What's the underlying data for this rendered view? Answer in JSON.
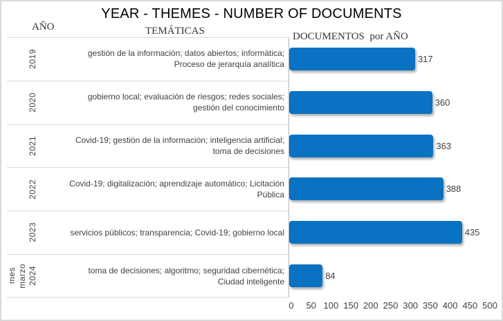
{
  "title": "YEAR - THEMES - NUMBER OF DOCUMENTS",
  "headers": {
    "year": "AÑO",
    "themes": "TEMÁTICAS",
    "documents": "DOCUMENTOS  por AÑO"
  },
  "rows": [
    {
      "year_lines": [
        "2019"
      ],
      "themes": "gestión de la información; datos abiertos; informática;\nProceso de jerarquía analítica",
      "value": 317
    },
    {
      "year_lines": [
        "2020"
      ],
      "themes": "gobierno local; evaluación de riesgos; redes sociales;\ngestión del conocimiento",
      "value": 360
    },
    {
      "year_lines": [
        "2021"
      ],
      "themes": "Covid-19; gestión de la información; inteligencia artificial;\ntoma de decisiones",
      "value": 363
    },
    {
      "year_lines": [
        "2022"
      ],
      "themes": "Covid-19; digitalización; aprendizaje automático; Licitación\nPública",
      "value": 388
    },
    {
      "year_lines": [
        "2023"
      ],
      "themes": "servicios públicos; transparencia; Covid-19; gobierno local",
      "value": 435
    },
    {
      "year_lines": [
        "mes",
        "marzo",
        "2024"
      ],
      "themes": "toma de decisiones; algoritmo; seguridad cibernética;\nCiudad inteligente",
      "value": 84
    }
  ],
  "chart_data": {
    "type": "bar",
    "orientation": "horizontal",
    "title": "YEAR - THEMES - NUMBER OF DOCUMENTS",
    "categories": [
      "2019",
      "2020",
      "2021",
      "2022",
      "2023",
      "mes marzo 2024"
    ],
    "values": [
      317,
      360,
      363,
      388,
      435,
      84
    ],
    "category_themes": [
      "gestión de la información; datos abiertos; informática; Proceso de jerarquía analítica",
      "gobierno local; evaluación de riesgos; redes sociales; gestión del conocimiento",
      "Covid-19; gestión de la información; inteligencia artificial; toma de decisiones",
      "Covid-19; digitalización; aprendizaje automático; Licitación Pública",
      "servicios públicos; transparencia; Covid-19; gobierno local",
      "toma de decisiones; algoritmo; seguridad cibernética; Ciudad inteligente"
    ],
    "xlabel": "DOCUMENTOS por AÑO",
    "ylabel": "AÑO",
    "xlim": [
      0,
      500
    ],
    "x_ticks": [
      0,
      50,
      100,
      150,
      200,
      250,
      300,
      350,
      400,
      450,
      500
    ],
    "grid": false,
    "legend": false,
    "value_labels": true,
    "bar_color": "#0a72c2"
  },
  "colors": {
    "bar": "#0a72c2",
    "border": "#d9d9d9",
    "separator": "#d9d9d9",
    "axis_line": "#b3b3b3",
    "text": "#404040",
    "title": "#000000"
  }
}
